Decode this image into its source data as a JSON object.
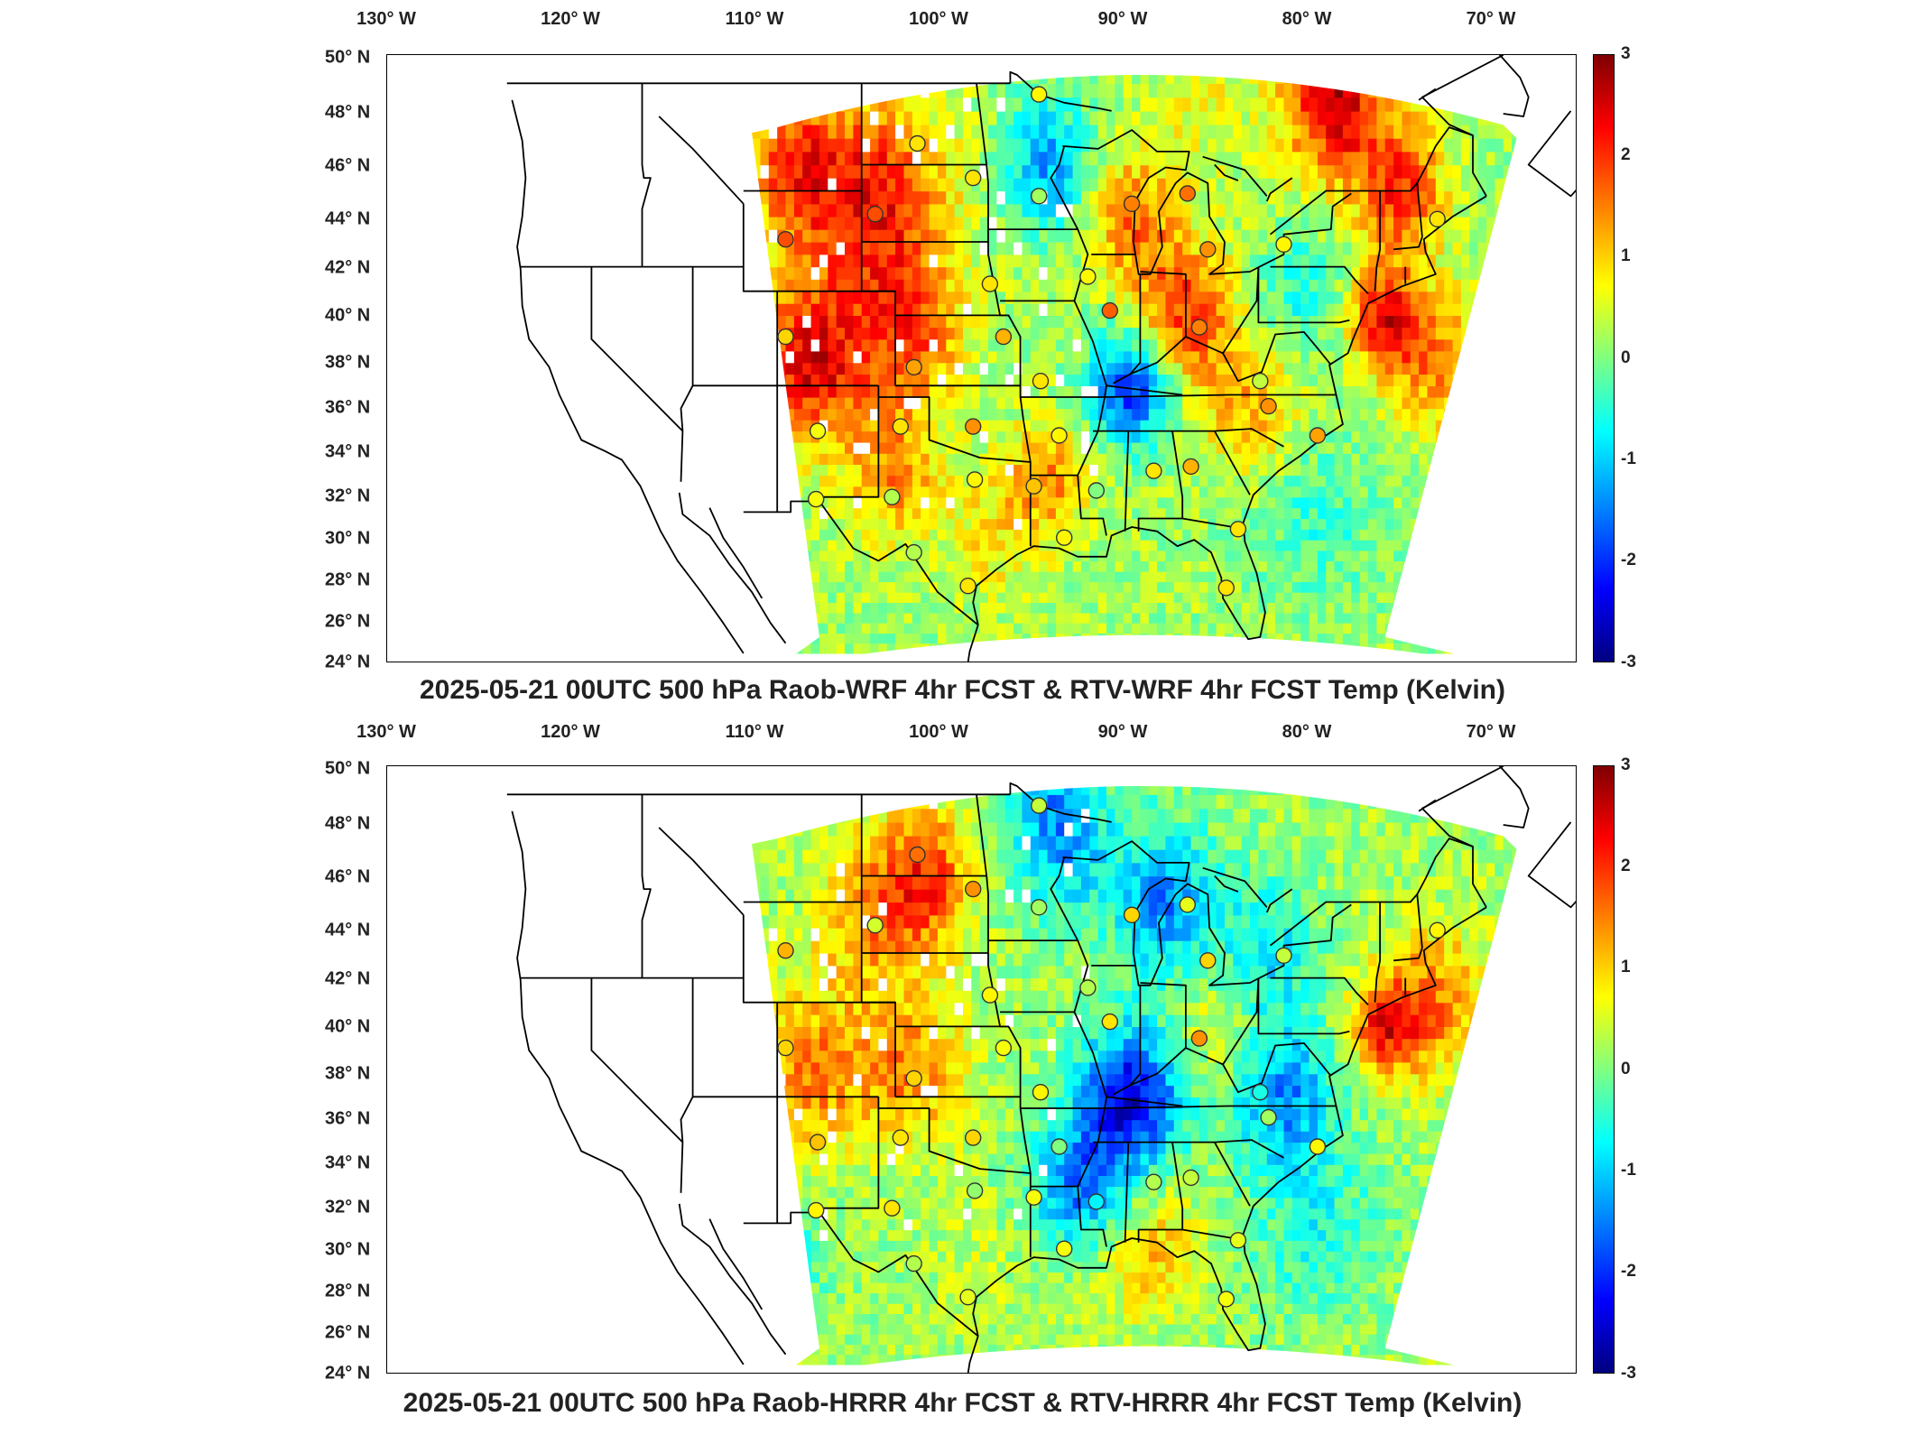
{
  "longitude_labels": [
    "130° W",
    "120° W",
    "110° W",
    "100° W",
    "90° W",
    "80° W",
    "70° W"
  ],
  "latitude_labels": [
    "50° N",
    "48° N",
    "46° N",
    "44° N",
    "42° N",
    "40° N",
    "38° N",
    "36° N",
    "34° N",
    "32° N",
    "30° N",
    "28° N",
    "26° N",
    "24° N"
  ],
  "colorbar": {
    "ticks": [
      "3",
      "2",
      "1",
      "0",
      "-1",
      "-2",
      "-3"
    ],
    "range": [
      -3,
      3
    ],
    "colormap": "jet"
  },
  "colors": {
    "dark_red": "#7f0000",
    "red": "#ff0000",
    "orange": "#ff8000",
    "yellow": "#ffff00",
    "green": "#80ff80",
    "cyan": "#00ffff",
    "blue": "#0000ff",
    "dark_blue": "#00007f"
  },
  "panels": [
    {
      "title": "2025-05-21 00UTC 500 hPa Raob-WRF 4hr FCST & RTV-WRF 4hr FCST Temp (Kelvin)",
      "stations": [
        {
          "lon": -93.5,
          "lat": 48.6,
          "value": 0.8
        },
        {
          "lon": -100.7,
          "lat": 46.8,
          "value": 0.9
        },
        {
          "lon": -97.4,
          "lat": 45.5,
          "value": 0.9
        },
        {
          "lon": -93.5,
          "lat": 44.8,
          "value": 0.2
        },
        {
          "lon": -88.0,
          "lat": 44.5,
          "value": 1.5
        },
        {
          "lon": -84.7,
          "lat": 44.9,
          "value": 1.6
        },
        {
          "lon": -103.2,
          "lat": 44.1,
          "value": 1.8
        },
        {
          "lon": -108.5,
          "lat": 43.1,
          "value": 1.8
        },
        {
          "lon": -83.5,
          "lat": 42.7,
          "value": 1.4
        },
        {
          "lon": -79.0,
          "lat": 42.9,
          "value": 0.8
        },
        {
          "lon": -69.9,
          "lat": 43.9,
          "value": 0.9
        },
        {
          "lon": -96.4,
          "lat": 41.3,
          "value": 0.9
        },
        {
          "lon": -90.6,
          "lat": 41.6,
          "value": 0.8
        },
        {
          "lon": -89.3,
          "lat": 40.2,
          "value": 1.7
        },
        {
          "lon": -84.0,
          "lat": 39.5,
          "value": 1.5
        },
        {
          "lon": -108.5,
          "lat": 39.1,
          "value": 1.0
        },
        {
          "lon": -95.6,
          "lat": 39.1,
          "value": 1.2
        },
        {
          "lon": -100.9,
          "lat": 37.8,
          "value": 1.3
        },
        {
          "lon": -93.4,
          "lat": 37.2,
          "value": 0.9
        },
        {
          "lon": -80.4,
          "lat": 37.2,
          "value": 0.4
        },
        {
          "lon": -79.9,
          "lat": 36.1,
          "value": 1.4
        },
        {
          "lon": -106.6,
          "lat": 35.0,
          "value": 0.7
        },
        {
          "lon": -101.7,
          "lat": 35.2,
          "value": 0.9
        },
        {
          "lon": -97.4,
          "lat": 35.2,
          "value": 1.4
        },
        {
          "lon": -92.3,
          "lat": 34.8,
          "value": 0.8
        },
        {
          "lon": -77.0,
          "lat": 34.8,
          "value": 1.3
        },
        {
          "lon": -86.7,
          "lat": 33.2,
          "value": 0.9
        },
        {
          "lon": -84.5,
          "lat": 33.4,
          "value": 1.2
        },
        {
          "lon": -97.3,
          "lat": 32.8,
          "value": 0.8
        },
        {
          "lon": -93.8,
          "lat": 32.5,
          "value": 1.1
        },
        {
          "lon": -90.1,
          "lat": 32.3,
          "value": 0.0
        },
        {
          "lon": -106.7,
          "lat": 31.9,
          "value": 0.7
        },
        {
          "lon": -102.2,
          "lat": 32.0,
          "value": 0.3
        },
        {
          "lon": -92.0,
          "lat": 30.1,
          "value": 0.8
        },
        {
          "lon": -81.7,
          "lat": 30.5,
          "value": 0.9
        },
        {
          "lon": -100.9,
          "lat": 29.4,
          "value": 0.3
        },
        {
          "lon": -97.7,
          "lat": 27.8,
          "value": 0.9
        },
        {
          "lon": -82.4,
          "lat": 27.7,
          "value": 0.9
        }
      ]
    },
    {
      "title": "2025-05-21 00UTC 500 hPa Raob-HRRR 4hr FCST & RTV-HRRR 4hr FCST Temp (Kelvin)",
      "stations": [
        {
          "lon": -93.5,
          "lat": 48.6,
          "value": 0.4
        },
        {
          "lon": -100.7,
          "lat": 46.8,
          "value": 1.6
        },
        {
          "lon": -97.4,
          "lat": 45.5,
          "value": 1.4
        },
        {
          "lon": -93.5,
          "lat": 44.8,
          "value": 0.2
        },
        {
          "lon": -88.0,
          "lat": 44.5,
          "value": 1.0
        },
        {
          "lon": -84.7,
          "lat": 44.9,
          "value": 0.6
        },
        {
          "lon": -103.2,
          "lat": 44.1,
          "value": 0.5
        },
        {
          "lon": -108.5,
          "lat": 43.1,
          "value": 1.2
        },
        {
          "lon": -83.5,
          "lat": 42.7,
          "value": 1.0
        },
        {
          "lon": -79.0,
          "lat": 42.9,
          "value": 0.4
        },
        {
          "lon": -69.9,
          "lat": 43.9,
          "value": 0.8
        },
        {
          "lon": -96.4,
          "lat": 41.3,
          "value": 0.8
        },
        {
          "lon": -90.6,
          "lat": 41.6,
          "value": 0.3
        },
        {
          "lon": -89.3,
          "lat": 40.2,
          "value": 0.9
        },
        {
          "lon": -84.0,
          "lat": 39.5,
          "value": 1.4
        },
        {
          "lon": -108.5,
          "lat": 39.1,
          "value": 1.0
        },
        {
          "lon": -95.6,
          "lat": 39.1,
          "value": 0.7
        },
        {
          "lon": -100.9,
          "lat": 37.8,
          "value": 1.0
        },
        {
          "lon": -93.4,
          "lat": 37.2,
          "value": 0.8
        },
        {
          "lon": -80.4,
          "lat": 37.2,
          "value": -0.6
        },
        {
          "lon": -79.9,
          "lat": 36.1,
          "value": 0.2
        },
        {
          "lon": -106.6,
          "lat": 35.0,
          "value": 1.1
        },
        {
          "lon": -101.7,
          "lat": 35.2,
          "value": 0.9
        },
        {
          "lon": -97.4,
          "lat": 35.2,
          "value": 1.0
        },
        {
          "lon": -92.3,
          "lat": 34.8,
          "value": 0.0
        },
        {
          "lon": -77.0,
          "lat": 34.8,
          "value": 0.8
        },
        {
          "lon": -86.7,
          "lat": 33.2,
          "value": 0.3
        },
        {
          "lon": -84.5,
          "lat": 33.4,
          "value": 0.4
        },
        {
          "lon": -97.3,
          "lat": 32.8,
          "value": 0.1
        },
        {
          "lon": -93.8,
          "lat": 32.5,
          "value": 0.7
        },
        {
          "lon": -90.1,
          "lat": 32.3,
          "value": -0.8
        },
        {
          "lon": -106.7,
          "lat": 31.9,
          "value": 0.8
        },
        {
          "lon": -102.2,
          "lat": 32.0,
          "value": 0.9
        },
        {
          "lon": -92.0,
          "lat": 30.1,
          "value": 0.7
        },
        {
          "lon": -81.7,
          "lat": 30.5,
          "value": 0.6
        },
        {
          "lon": -100.9,
          "lat": 29.4,
          "value": 0.3
        },
        {
          "lon": -97.7,
          "lat": 27.8,
          "value": 0.6
        },
        {
          "lon": -82.4,
          "lat": 27.7,
          "value": 0.7
        }
      ]
    }
  ]
}
